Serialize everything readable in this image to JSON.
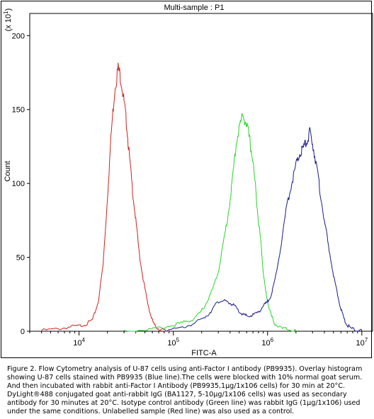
{
  "chart_data": {
    "type": "line",
    "title": "Multi-sample : P1",
    "xlabel": "FITC-A",
    "ylabel": "Count",
    "y_multiplier": "(x 10",
    "y_multiplier_exp": "1",
    "x_scale": "log",
    "xlim": [
      3000,
      13000000
    ],
    "ylim": [
      0,
      215
    ],
    "x_ticks": [
      {
        "value": 10000,
        "base": "10",
        "exp": "4"
      },
      {
        "value": 100000,
        "base": "10",
        "exp": "5"
      },
      {
        "value": 1000000,
        "base": "10",
        "exp": "6"
      },
      {
        "value": 10000000,
        "base": "10",
        "exp": "7"
      }
    ],
    "y_ticks": [
      {
        "value": 0,
        "label": "0"
      },
      {
        "value": 50,
        "label": "50"
      },
      {
        "value": 100,
        "label": "100"
      },
      {
        "value": 150,
        "label": "150"
      },
      {
        "value": 200,
        "label": "200"
      }
    ],
    "grid": false,
    "series": [
      {
        "color": "#d42020",
        "points": [
          [
            4000,
            0.5
          ],
          [
            6000,
            1.5
          ],
          [
            8000,
            3
          ],
          [
            10000,
            3.5
          ],
          [
            12000,
            5
          ],
          [
            14000,
            8
          ],
          [
            16000,
            20
          ],
          [
            18000,
            45
          ],
          [
            20000,
            90
          ],
          [
            22000,
            135
          ],
          [
            24000,
            165
          ],
          [
            26000,
            178
          ],
          [
            28000,
            170
          ],
          [
            30000,
            155
          ],
          [
            32000,
            140
          ],
          [
            34000,
            120
          ],
          [
            37000,
            95
          ],
          [
            40000,
            75
          ],
          [
            44000,
            50
          ],
          [
            48000,
            35
          ],
          [
            53000,
            20
          ],
          [
            58000,
            10
          ],
          [
            63000,
            4
          ],
          [
            70000,
            1.5
          ],
          [
            80000,
            0.5
          ],
          [
            90000,
            0
          ]
        ]
      },
      {
        "color": "#2ad42a",
        "points": [
          [
            30000,
            0.3
          ],
          [
            50000,
            1
          ],
          [
            70000,
            2
          ],
          [
            100000,
            4
          ],
          [
            130000,
            6
          ],
          [
            160000,
            8
          ],
          [
            190000,
            12
          ],
          [
            220000,
            18
          ],
          [
            260000,
            28
          ],
          [
            300000,
            40
          ],
          [
            340000,
            60
          ],
          [
            380000,
            78
          ],
          [
            420000,
            100
          ],
          [
            460000,
            125
          ],
          [
            500000,
            138
          ],
          [
            550000,
            146
          ],
          [
            600000,
            140
          ],
          [
            650000,
            128
          ],
          [
            700000,
            115
          ],
          [
            750000,
            95
          ],
          [
            800000,
            75
          ],
          [
            850000,
            60
          ],
          [
            900000,
            40
          ],
          [
            950000,
            28
          ],
          [
            1000000,
            20
          ],
          [
            1100000,
            10
          ],
          [
            1200000,
            5
          ],
          [
            1400000,
            2
          ],
          [
            1700000,
            1
          ],
          [
            2000000,
            0
          ]
        ]
      },
      {
        "color": "#1a1a8c",
        "points": [
          [
            80000,
            0
          ],
          [
            120000,
            2
          ],
          [
            160000,
            5
          ],
          [
            200000,
            8
          ],
          [
            240000,
            12
          ],
          [
            280000,
            18
          ],
          [
            320000,
            21
          ],
          [
            360000,
            20
          ],
          [
            400000,
            19
          ],
          [
            450000,
            17
          ],
          [
            500000,
            13
          ],
          [
            560000,
            11
          ],
          [
            620000,
            10
          ],
          [
            700000,
            11
          ],
          [
            800000,
            13
          ],
          [
            900000,
            17
          ],
          [
            1000000,
            20
          ],
          [
            1100000,
            25
          ],
          [
            1200000,
            35
          ],
          [
            1400000,
            60
          ],
          [
            1600000,
            85
          ],
          [
            1800000,
            100
          ],
          [
            2000000,
            112
          ],
          [
            2200000,
            120
          ],
          [
            2400000,
            124
          ],
          [
            2600000,
            128
          ],
          [
            2800000,
            134
          ],
          [
            3000000,
            128
          ],
          [
            3300000,
            112
          ],
          [
            3600000,
            95
          ],
          [
            4000000,
            75
          ],
          [
            4500000,
            55
          ],
          [
            5000000,
            38
          ],
          [
            5500000,
            25
          ],
          [
            6000000,
            15
          ],
          [
            6500000,
            8
          ],
          [
            7000000,
            4
          ],
          [
            8000000,
            1.5
          ],
          [
            9000000,
            0.5
          ],
          [
            10000000,
            0
          ]
        ]
      }
    ]
  },
  "caption": "Figure 2. Flow Cytometry analysis of U-87 cells using anti-Factor I antibody (PB9935). Overlay histogram showing U-87 cells stained with PB9935 (Blue line).The cells were blocked with 10% normal goat serum. And then incubated with rabbit anti-Factor I Antibody (PB9935,1μg/1x106 cells) for 30 min at 20°C. DyLight®488 conjugated goat anti-rabbit IgG (BA1127, 5-10μg/1x106 cells) was used as secondary antibody for 30 minutes at 20°C. Isotype control antibody (Green line) was rabbit IgG (1μg/1x106) used under the same conditions. Unlabelled sample (Red line) was also used as a control."
}
